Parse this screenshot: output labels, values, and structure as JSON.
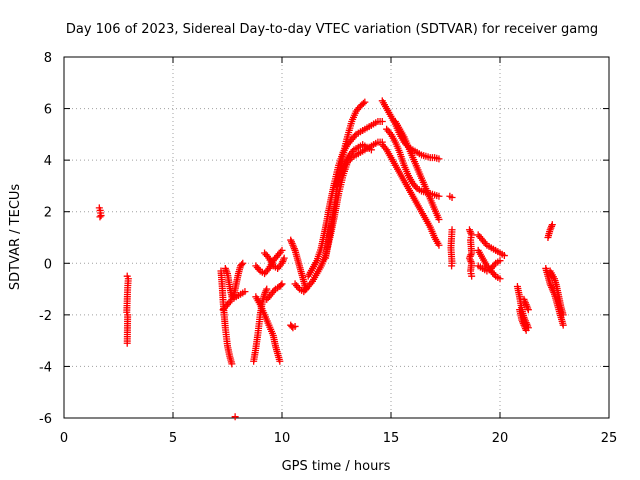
{
  "chart_data": {
    "type": "scatter",
    "title": "Day 106 of 2023, Sidereal Day-to-day VTEC variation (SDTVAR) for receiver gamg",
    "xlabel": "GPS time / hours",
    "ylabel": "SDTVAR / TECUs",
    "xlim": [
      0,
      25
    ],
    "ylim": [
      -6,
      8
    ],
    "xticks": [
      0,
      5,
      10,
      15,
      20,
      25
    ],
    "yticks": [
      -6,
      -4,
      -2,
      0,
      2,
      4,
      6,
      8
    ],
    "grid": true,
    "marker": "+",
    "color": "#ff0000",
    "series": [
      {
        "name": "SDTVAR",
        "segments": [
          [
            [
              1.62,
              2.15
            ],
            [
              1.66,
              2.05
            ],
            [
              1.7,
              1.85
            ],
            [
              1.65,
              1.8
            ]
          ],
          [
            [
              2.9,
              -0.5
            ],
            [
              2.95,
              -0.6
            ],
            [
              2.92,
              -0.95
            ],
            [
              2.88,
              -1.9
            ],
            [
              2.92,
              -2.0
            ],
            [
              2.9,
              -3.1
            ]
          ],
          [
            [
              7.2,
              -0.3
            ],
            [
              7.25,
              -0.8
            ],
            [
              7.3,
              -1.5
            ],
            [
              7.4,
              -2.5
            ],
            [
              7.5,
              -3.2
            ],
            [
              7.6,
              -3.6
            ],
            [
              7.7,
              -3.9
            ]
          ],
          [
            [
              7.4,
              -0.2
            ],
            [
              7.5,
              -0.4
            ],
            [
              7.6,
              -0.9
            ],
            [
              7.7,
              -1.3
            ],
            [
              7.8,
              -1.2
            ],
            [
              7.9,
              -0.8
            ],
            [
              8.0,
              -0.4
            ],
            [
              8.1,
              -0.1
            ],
            [
              8.2,
              0.0
            ]
          ],
          [
            [
              7.3,
              -1.8
            ],
            [
              7.5,
              -1.6
            ],
            [
              7.7,
              -1.4
            ],
            [
              7.9,
              -1.3
            ],
            [
              8.1,
              -1.2
            ],
            [
              8.3,
              -1.1
            ]
          ],
          [
            [
              7.85,
              -5.95
            ]
          ],
          [
            [
              8.7,
              -3.8
            ],
            [
              8.8,
              -3.3
            ],
            [
              8.9,
              -2.7
            ],
            [
              9.0,
              -2.0
            ],
            [
              9.1,
              -1.5
            ],
            [
              9.2,
              -1.2
            ],
            [
              9.3,
              -1.0
            ]
          ],
          [
            [
              8.8,
              -1.3
            ],
            [
              9.0,
              -1.6
            ],
            [
              9.2,
              -2.0
            ],
            [
              9.4,
              -2.4
            ],
            [
              9.6,
              -2.8
            ],
            [
              9.7,
              -3.2
            ],
            [
              9.8,
              -3.5
            ],
            [
              9.9,
              -3.8
            ]
          ],
          [
            [
              8.8,
              -0.1
            ],
            [
              9.0,
              -0.3
            ],
            [
              9.2,
              -0.4
            ],
            [
              9.4,
              -0.2
            ],
            [
              9.6,
              0.1
            ],
            [
              9.8,
              0.3
            ],
            [
              10.0,
              0.5
            ]
          ],
          [
            [
              9.2,
              0.4
            ],
            [
              9.4,
              0.2
            ],
            [
              9.6,
              -0.1
            ],
            [
              9.8,
              -0.2
            ],
            [
              10.0,
              0.0
            ],
            [
              10.1,
              0.2
            ]
          ],
          [
            [
              9.3,
              -1.4
            ],
            [
              9.5,
              -1.2
            ],
            [
              9.7,
              -1.0
            ],
            [
              9.9,
              -0.9
            ],
            [
              10.0,
              -0.8
            ]
          ],
          [
            [
              10.4,
              -2.4
            ],
            [
              10.5,
              -2.5
            ],
            [
              10.6,
              -2.45
            ]
          ],
          [
            [
              10.4,
              0.9
            ],
            [
              10.5,
              0.7
            ],
            [
              10.6,
              0.5
            ],
            [
              10.7,
              0.2
            ],
            [
              10.8,
              -0.1
            ],
            [
              10.9,
              -0.4
            ],
            [
              11.0,
              -0.7
            ],
            [
              11.1,
              -1.0
            ]
          ],
          [
            [
              10.6,
              -0.8
            ],
            [
              10.8,
              -1.0
            ],
            [
              11.0,
              -1.1
            ],
            [
              11.2,
              -0.9
            ],
            [
              11.4,
              -0.7
            ],
            [
              11.6,
              -0.4
            ],
            [
              11.8,
              -0.1
            ],
            [
              12.0,
              0.3
            ],
            [
              12.2,
              1.0
            ],
            [
              12.4,
              1.8
            ],
            [
              12.6,
              2.7
            ],
            [
              12.8,
              3.4
            ],
            [
              13.0,
              3.9
            ],
            [
              13.2,
              4.1
            ],
            [
              13.4,
              4.2
            ],
            [
              13.6,
              4.3
            ],
            [
              13.8,
              4.4
            ],
            [
              14.0,
              4.5
            ],
            [
              14.2,
              4.6
            ],
            [
              14.4,
              4.7
            ],
            [
              14.6,
              4.7
            ]
          ],
          [
            [
              11.2,
              -0.5
            ],
            [
              11.4,
              -0.2
            ],
            [
              11.6,
              0.1
            ],
            [
              11.8,
              0.6
            ],
            [
              12.0,
              1.4
            ],
            [
              12.2,
              2.3
            ],
            [
              12.4,
              3.1
            ],
            [
              12.6,
              3.8
            ],
            [
              12.8,
              4.3
            ],
            [
              13.0,
              4.6
            ],
            [
              13.2,
              4.8
            ],
            [
              13.4,
              5.0
            ],
            [
              13.6,
              5.1
            ],
            [
              13.8,
              5.2
            ],
            [
              14.0,
              5.3
            ],
            [
              14.2,
              5.4
            ],
            [
              14.4,
              5.5
            ],
            [
              14.6,
              5.5
            ]
          ],
          [
            [
              12.0,
              0.2
            ],
            [
              12.2,
              1.2
            ],
            [
              12.4,
              2.2
            ],
            [
              12.6,
              3.3
            ],
            [
              12.8,
              4.2
            ],
            [
              13.0,
              4.9
            ],
            [
              13.2,
              5.5
            ],
            [
              13.4,
              5.9
            ],
            [
              13.6,
              6.1
            ],
            [
              13.8,
              6.25
            ]
          ],
          [
            [
              12.5,
              3.0
            ],
            [
              12.7,
              3.5
            ],
            [
              12.9,
              3.9
            ],
            [
              13.1,
              4.2
            ],
            [
              13.3,
              4.4
            ],
            [
              13.5,
              4.5
            ],
            [
              13.7,
              4.6
            ],
            [
              13.9,
              4.5
            ],
            [
              14.1,
              4.4
            ]
          ],
          [
            [
              14.6,
              6.3
            ],
            [
              14.8,
              6.0
            ],
            [
              15.0,
              5.7
            ],
            [
              15.2,
              5.4
            ],
            [
              15.4,
              5.0
            ],
            [
              15.6,
              4.7
            ],
            [
              15.8,
              4.5
            ],
            [
              16.0,
              4.4
            ],
            [
              16.2,
              4.3
            ],
            [
              16.4,
              4.2
            ],
            [
              16.6,
              4.15
            ],
            [
              16.8,
              4.1
            ],
            [
              17.0,
              4.1
            ],
            [
              17.2,
              4.05
            ]
          ],
          [
            [
              14.8,
              5.2
            ],
            [
              15.0,
              5.0
            ],
            [
              15.2,
              4.7
            ],
            [
              15.4,
              4.3
            ],
            [
              15.6,
              3.8
            ],
            [
              15.8,
              3.4
            ],
            [
              16.0,
              3.1
            ],
            [
              16.2,
              2.9
            ],
            [
              16.4,
              2.8
            ],
            [
              16.6,
              2.75
            ],
            [
              16.8,
              2.7
            ],
            [
              17.0,
              2.65
            ],
            [
              17.2,
              2.6
            ]
          ],
          [
            [
              14.6,
              4.6
            ],
            [
              14.8,
              4.4
            ],
            [
              15.0,
              4.1
            ],
            [
              15.2,
              3.8
            ],
            [
              15.4,
              3.5
            ],
            [
              15.6,
              3.2
            ],
            [
              15.8,
              2.9
            ],
            [
              16.0,
              2.6
            ],
            [
              16.2,
              2.3
            ],
            [
              16.4,
              2.0
            ],
            [
              16.6,
              1.7
            ],
            [
              16.8,
              1.4
            ],
            [
              17.0,
              1.0
            ],
            [
              17.2,
              0.7
            ]
          ],
          [
            [
              15.2,
              5.5
            ],
            [
              15.4,
              5.2
            ],
            [
              15.6,
              4.9
            ],
            [
              15.8,
              4.5
            ],
            [
              16.0,
              4.1
            ],
            [
              16.2,
              3.7
            ],
            [
              16.4,
              3.3
            ],
            [
              16.6,
              2.9
            ],
            [
              16.8,
              2.5
            ],
            [
              17.0,
              2.1
            ],
            [
              17.2,
              1.7
            ]
          ],
          [
            [
              17.7,
              2.6
            ],
            [
              17.8,
              2.55
            ]
          ],
          [
            [
              17.8,
              1.3
            ],
            [
              17.75,
              0.6
            ],
            [
              17.8,
              0.0
            ],
            [
              17.78,
              -0.1
            ]
          ],
          [
            [
              18.6,
              1.3
            ],
            [
              18.7,
              1.1
            ],
            [
              18.65,
              0.9
            ],
            [
              18.7,
              0.4
            ],
            [
              18.6,
              0.2
            ],
            [
              18.7,
              0.0
            ],
            [
              18.65,
              -0.3
            ],
            [
              18.7,
              -0.5
            ]
          ],
          [
            [
              19.0,
              1.1
            ],
            [
              19.2,
              0.9
            ],
            [
              19.4,
              0.7
            ],
            [
              19.6,
              0.6
            ],
            [
              19.8,
              0.5
            ],
            [
              20.0,
              0.4
            ],
            [
              20.2,
              0.3
            ]
          ],
          [
            [
              19.0,
              0.5
            ],
            [
              19.2,
              0.2
            ],
            [
              19.4,
              -0.1
            ],
            [
              19.6,
              -0.3
            ],
            [
              19.8,
              -0.5
            ],
            [
              20.0,
              -0.6
            ]
          ],
          [
            [
              19.0,
              -0.1
            ],
            [
              19.2,
              -0.2
            ],
            [
              19.4,
              -0.3
            ],
            [
              19.6,
              -0.2
            ],
            [
              19.8,
              0.0
            ],
            [
              20.0,
              0.1
            ]
          ],
          [
            [
              20.8,
              -0.9
            ],
            [
              20.9,
              -1.3
            ],
            [
              21.0,
              -1.8
            ],
            [
              21.1,
              -2.1
            ],
            [
              21.2,
              -2.3
            ],
            [
              21.3,
              -2.5
            ]
          ],
          [
            [
              20.9,
              -1.8
            ],
            [
              21.0,
              -2.2
            ],
            [
              21.1,
              -2.4
            ],
            [
              21.2,
              -2.6
            ]
          ],
          [
            [
              21.1,
              -1.4
            ],
            [
              21.2,
              -1.6
            ],
            [
              21.3,
              -1.8
            ]
          ],
          [
            [
              22.2,
              1.0
            ],
            [
              22.3,
              1.3
            ],
            [
              22.4,
              1.5
            ]
          ],
          [
            [
              22.1,
              -0.2
            ],
            [
              22.2,
              -0.5
            ],
            [
              22.3,
              -0.8
            ],
            [
              22.4,
              -1.0
            ],
            [
              22.5,
              -1.2
            ],
            [
              22.6,
              -1.5
            ],
            [
              22.7,
              -1.8
            ],
            [
              22.8,
              -2.1
            ],
            [
              22.9,
              -2.4
            ]
          ],
          [
            [
              22.3,
              -0.3
            ],
            [
              22.5,
              -0.6
            ],
            [
              22.6,
              -0.9
            ],
            [
              22.7,
              -1.3
            ],
            [
              22.8,
              -1.7
            ],
            [
              22.9,
              -2.0
            ]
          ]
        ]
      }
    ]
  }
}
